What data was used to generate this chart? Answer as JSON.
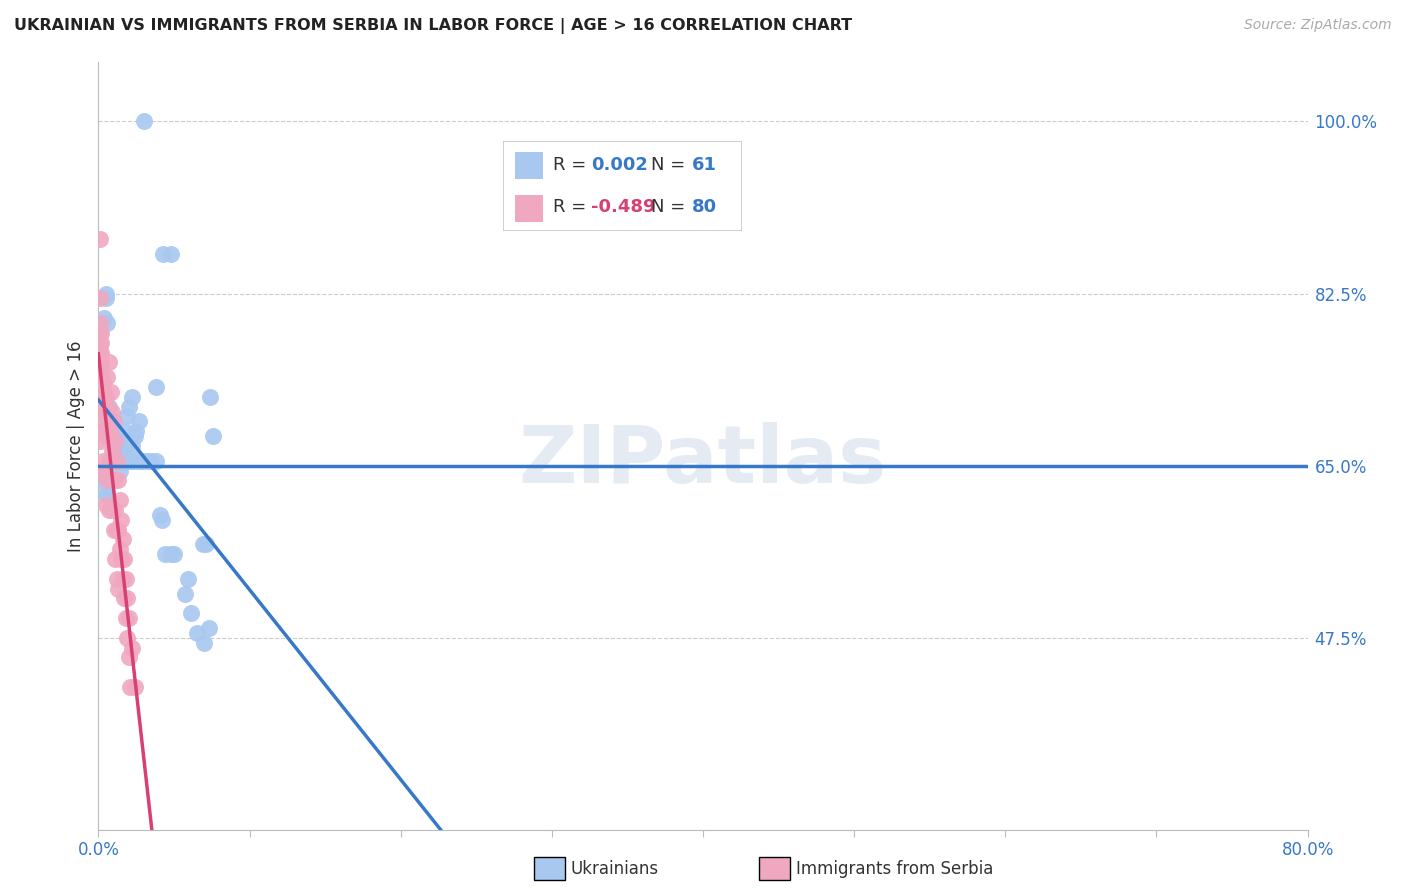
{
  "title": "UKRAINIAN VS IMMIGRANTS FROM SERBIA IN LABOR FORCE | AGE > 16 CORRELATION CHART",
  "source": "Source: ZipAtlas.com",
  "ylabel": "In Labor Force | Age > 16",
  "xlim": [
    0.0,
    0.8
  ],
  "ylim": [
    0.28,
    1.06
  ],
  "ytick_positions": [
    0.475,
    0.65,
    0.825,
    1.0
  ],
  "ytick_labels": [
    "47.5%",
    "65.0%",
    "82.5%",
    "100.0%"
  ],
  "xtick_positions": [
    0.0,
    0.1,
    0.2,
    0.3,
    0.4,
    0.5,
    0.6,
    0.7,
    0.8
  ],
  "xtick_labels_visible": [
    "0.0%",
    "",
    "",
    "",
    "",
    "",
    "",
    "",
    "80.0%"
  ],
  "hline_y": 0.65,
  "hline_color": "#3878c8",
  "blue_color": "#a8c8f0",
  "pink_color": "#f0a8c0",
  "blue_line_color": "#3878c8",
  "pink_line_color": "#d84070",
  "blue_R_color": "#3878c8",
  "pink_R_color": "#d84070",
  "N_color": "#3878c8",
  "watermark": "ZIPatlas",
  "title_color": "#222222",
  "axis_color": "#3878c8",
  "grid_color": "#cccccc",
  "blue_scatter_x": [
    0.03,
    0.043,
    0.048,
    0.005,
    0.005,
    0.004,
    0.006,
    0.007,
    0.008,
    0.009,
    0.01,
    0.012,
    0.013,
    0.015,
    0.017,
    0.018,
    0.019,
    0.02,
    0.022,
    0.022,
    0.024,
    0.025,
    0.027,
    0.028,
    0.005,
    0.005,
    0.006,
    0.007,
    0.008,
    0.009,
    0.01,
    0.011,
    0.012,
    0.013,
    0.014,
    0.016,
    0.017,
    0.018,
    0.021,
    0.023,
    0.026,
    0.029,
    0.032,
    0.035,
    0.038,
    0.041,
    0.042,
    0.044,
    0.048,
    0.05,
    0.038,
    0.057,
    0.059,
    0.061,
    0.065,
    0.07,
    0.073,
    0.074,
    0.069,
    0.071,
    0.076
  ],
  "blue_scatter_y": [
    1.0,
    0.865,
    0.865,
    0.825,
    0.82,
    0.8,
    0.795,
    0.71,
    0.695,
    0.685,
    0.675,
    0.67,
    0.675,
    0.67,
    0.685,
    0.67,
    0.7,
    0.71,
    0.72,
    0.67,
    0.68,
    0.685,
    0.695,
    0.655,
    0.63,
    0.62,
    0.62,
    0.635,
    0.655,
    0.655,
    0.655,
    0.66,
    0.655,
    0.655,
    0.645,
    0.655,
    0.655,
    0.655,
    0.655,
    0.655,
    0.655,
    0.655,
    0.655,
    0.655,
    0.655,
    0.6,
    0.595,
    0.56,
    0.56,
    0.56,
    0.73,
    0.52,
    0.535,
    0.5,
    0.48,
    0.47,
    0.485,
    0.72,
    0.57,
    0.57,
    0.68
  ],
  "pink_scatter_x": [
    0.001,
    0.001,
    0.001,
    0.001,
    0.001,
    0.001,
    0.001,
    0.001,
    0.001,
    0.001,
    0.001,
    0.001,
    0.001,
    0.001,
    0.001,
    0.002,
    0.002,
    0.002,
    0.002,
    0.002,
    0.002,
    0.002,
    0.002,
    0.002,
    0.003,
    0.003,
    0.003,
    0.003,
    0.003,
    0.004,
    0.004,
    0.004,
    0.004,
    0.005,
    0.005,
    0.005,
    0.005,
    0.006,
    0.006,
    0.006,
    0.007,
    0.007,
    0.007,
    0.008,
    0.008,
    0.009,
    0.009,
    0.01,
    0.01,
    0.011,
    0.011,
    0.012,
    0.012,
    0.013,
    0.013,
    0.014,
    0.015,
    0.016,
    0.017,
    0.018,
    0.019,
    0.02,
    0.021,
    0.006,
    0.007,
    0.008,
    0.009,
    0.01,
    0.011,
    0.012,
    0.013,
    0.014,
    0.015,
    0.016,
    0.017,
    0.018,
    0.019,
    0.02,
    0.022,
    0.024
  ],
  "pink_scatter_y": [
    0.88,
    0.82,
    0.795,
    0.785,
    0.775,
    0.765,
    0.755,
    0.745,
    0.735,
    0.725,
    0.715,
    0.705,
    0.695,
    0.675,
    0.645,
    0.785,
    0.775,
    0.765,
    0.755,
    0.745,
    0.735,
    0.725,
    0.715,
    0.695,
    0.735,
    0.725,
    0.705,
    0.685,
    0.655,
    0.725,
    0.715,
    0.685,
    0.645,
    0.72,
    0.705,
    0.68,
    0.61,
    0.71,
    0.68,
    0.635,
    0.695,
    0.655,
    0.605,
    0.68,
    0.655,
    0.665,
    0.605,
    0.635,
    0.585,
    0.605,
    0.555,
    0.585,
    0.535,
    0.585,
    0.525,
    0.565,
    0.555,
    0.535,
    0.515,
    0.495,
    0.475,
    0.455,
    0.425,
    0.74,
    0.755,
    0.725,
    0.705,
    0.695,
    0.675,
    0.655,
    0.635,
    0.615,
    0.595,
    0.575,
    0.555,
    0.535,
    0.515,
    0.495,
    0.465,
    0.425
  ]
}
